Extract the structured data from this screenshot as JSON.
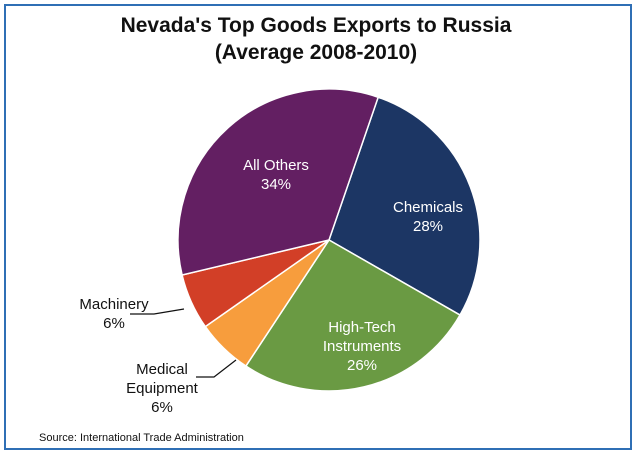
{
  "chart_data": {
    "type": "pie",
    "title": "Nevada's Top Goods Exports to Russia",
    "subtitle": "(Average 2008-2010)",
    "categories": [
      "Chemicals",
      "High-Tech Instruments",
      "Medical Equipment",
      "Machinery",
      "All Others"
    ],
    "label_lines": [
      [
        "Chemicals",
        "28%"
      ],
      [
        "High-Tech",
        "Instruments",
        "26%"
      ],
      [
        "Medical",
        "Equipment",
        "6%"
      ],
      [
        "Machinery",
        "6%"
      ],
      [
        "All Others",
        "34%"
      ]
    ],
    "values": [
      28,
      26,
      6,
      6,
      34
    ],
    "colors": [
      "#1c3664",
      "#6a9a43",
      "#f79d3d",
      "#d23f27",
      "#631f62"
    ],
    "legend": "none",
    "source": "Source: International Trade Administration"
  }
}
